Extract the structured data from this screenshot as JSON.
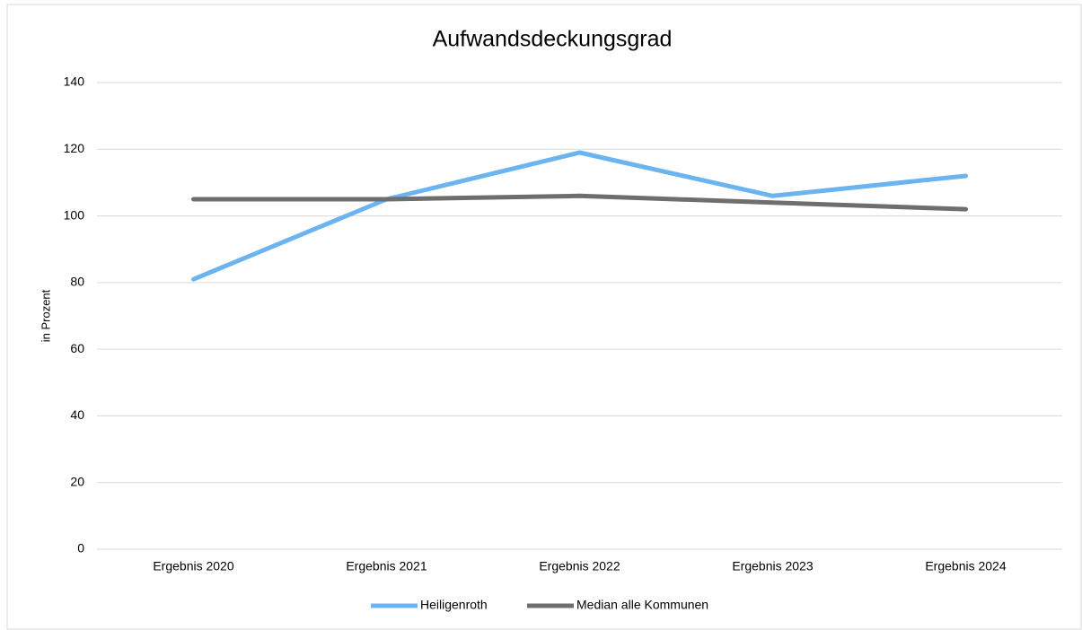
{
  "chart_data": {
    "type": "line",
    "title": "Aufwandsdeckungsgrad",
    "y_label": "in Prozent",
    "categories": [
      "Ergebnis 2020",
      "Ergebnis 2021",
      "Ergebnis 2022",
      "Ergebnis 2023",
      "Ergebnis 2024"
    ],
    "series": [
      {
        "name": "Heiligenroth",
        "color": "#6cb4f0",
        "values": [
          81,
          105,
          119,
          106,
          112
        ]
      },
      {
        "name": "Median alle Kommunen",
        "color": "#6e6e6e",
        "values": [
          105,
          105,
          106,
          104,
          102
        ]
      }
    ],
    "ylim": [
      0,
      140
    ],
    "yticks": [
      0,
      20,
      40,
      60,
      80,
      100,
      120,
      140
    ],
    "grid": true,
    "legend": "bottom"
  }
}
